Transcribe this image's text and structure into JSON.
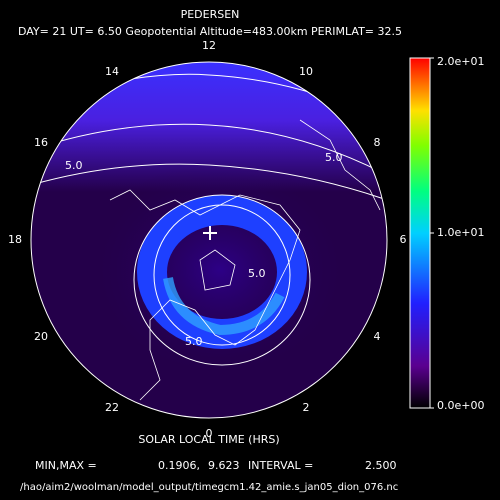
{
  "header": {
    "title": "PEDERSEN",
    "subtitle": "DAY= 21 UT= 6.50 Geopotential Altitude=483.00km PERIMLAT= 32.5"
  },
  "plot": {
    "hour_labels": [
      "12",
      "14",
      "16",
      "18",
      "20",
      "22",
      "0",
      "2",
      "4",
      "6",
      "8",
      "10"
    ],
    "contour_labels": [
      "5.0",
      "5.0",
      "5.0",
      "5.0"
    ],
    "xlabel": "SOLAR LOCAL TIME (HRS)"
  },
  "colorbar": {
    "lim": [
      0,
      20
    ],
    "ticks": [
      {
        "value": 0,
        "label": "0.0e+00"
      },
      {
        "value": 10,
        "label": "1.0e+01"
      },
      {
        "value": 20,
        "label": "2.0e+01"
      }
    ]
  },
  "footer": {
    "minmax_label": "MIN,MAX =",
    "min": "0.1906,",
    "max": "9.623",
    "interval_label": "INTERVAL =",
    "interval": "2.500",
    "file": "/hao/aim2/woolman/model_output/timegcm1.42_amie.s_jan05_dion_076.nc"
  }
}
